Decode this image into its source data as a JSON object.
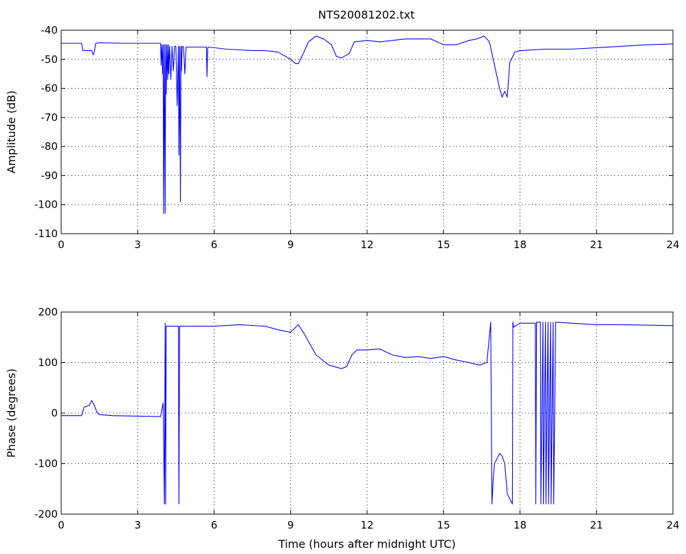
{
  "chart_data": [
    {
      "type": "line",
      "title": "NTS20081202.txt",
      "xlabel": "",
      "ylabel": "Amplitude (dB)",
      "xlim": [
        0,
        24
      ],
      "ylim": [
        -110,
        -40
      ],
      "xticks": [
        "0",
        "3",
        "6",
        "9",
        "12",
        "15",
        "18",
        "21",
        "24"
      ],
      "yticks": [
        "-40",
        "-50",
        "-60",
        "-70",
        "-80",
        "-90",
        "-100",
        "-110"
      ],
      "grid": true,
      "series": [
        {
          "color": "#0000ff",
          "x": [
            0,
            0.8,
            0.85,
            1.2,
            1.25,
            1.3,
            1.35,
            1.5,
            2.5,
            3.9,
            3.92,
            3.95,
            3.98,
            4.0,
            4.02,
            4.05,
            4.08,
            4.1,
            4.12,
            4.15,
            4.18,
            4.2,
            4.22,
            4.25,
            4.3,
            4.35,
            4.4,
            4.45,
            4.5,
            4.55,
            4.6,
            4.62,
            4.65,
            4.68,
            4.7,
            4.72,
            4.75,
            4.8,
            4.85,
            4.9,
            4.95,
            5.0,
            5.5,
            5.7,
            5.72,
            5.75,
            5.8,
            6.5,
            7.5,
            8.0,
            8.5,
            9.0,
            9.2,
            9.3,
            9.5,
            9.7,
            10.0,
            10.3,
            10.6,
            10.8,
            11.0,
            11.3,
            11.5,
            12.0,
            12.5,
            13.0,
            13.5,
            14.0,
            14.5,
            15.0,
            15.5,
            16.0,
            16.3,
            16.6,
            16.8,
            17.0,
            17.2,
            17.3,
            17.4,
            17.5,
            17.6,
            17.8,
            18.0,
            19.0,
            20.0,
            21.0,
            22.0,
            23.0,
            24.0
          ],
          "y": [
            -44.5,
            -44.5,
            -47,
            -47,
            -48.5,
            -47.5,
            -44.5,
            -44.3,
            -44.5,
            -44.5,
            -52,
            -45,
            -55,
            -45,
            -103,
            -45,
            -103,
            -45,
            -62,
            -45,
            -57,
            -45,
            -55,
            -45.5,
            -57,
            -45.5,
            -54,
            -45.5,
            -45.5,
            -66,
            -45.5,
            -83,
            -45.5,
            -99,
            -45.5,
            -54,
            -45.5,
            -45.8,
            -55,
            -45.8,
            -45.8,
            -45.8,
            -45.8,
            -45.8,
            -56,
            -46,
            -45.8,
            -46.5,
            -47,
            -47,
            -47.5,
            -50,
            -51.5,
            -51.5,
            -48,
            -44,
            -42,
            -43,
            -45,
            -49,
            -49.5,
            -48,
            -44,
            -43.5,
            -44,
            -43.5,
            -43,
            -43,
            -43,
            -45,
            -45,
            -43.5,
            -43,
            -42,
            -44,
            -52,
            -60,
            -63,
            -61,
            -63,
            -51,
            -47.5,
            -47,
            -46.5,
            -46.5,
            -46,
            -45.5,
            -45,
            -44.7
          ]
        }
      ]
    },
    {
      "type": "line",
      "title": "",
      "xlabel": "Time (hours after midnight UTC)",
      "ylabel": "Phase (degrees)",
      "xlim": [
        0,
        24
      ],
      "ylim": [
        -200,
        200
      ],
      "xticks": [
        "0",
        "3",
        "6",
        "9",
        "12",
        "15",
        "18",
        "21",
        "24"
      ],
      "yticks": [
        "200",
        "100",
        "0",
        "-100",
        "-200"
      ],
      "grid": true,
      "series": [
        {
          "color": "#0000ff",
          "x": [
            0,
            0.8,
            0.9,
            1.1,
            1.2,
            1.3,
            1.4,
            1.5,
            2.0,
            3.0,
            3.9,
            4.0,
            4.05,
            4.08,
            4.1,
            4.12,
            4.15,
            4.2,
            4.5,
            4.6,
            4.62,
            4.65,
            4.7,
            5.0,
            6.0,
            7.0,
            8.0,
            8.5,
            9.0,
            9.3,
            9.5,
            10.0,
            10.5,
            11.0,
            11.2,
            11.4,
            11.6,
            12.0,
            12.5,
            13.0,
            13.5,
            14.0,
            14.5,
            15.0,
            15.5,
            16.0,
            16.4,
            16.7,
            16.85,
            16.9,
            16.95,
            17.0,
            17.2,
            17.3,
            17.4,
            17.5,
            17.7,
            17.72,
            17.75,
            17.8,
            18.0,
            18.6,
            18.62,
            18.65,
            18.8,
            18.82,
            18.9,
            18.92,
            19.0,
            19.02,
            19.1,
            19.12,
            19.2,
            19.22,
            19.3,
            19.32,
            19.4,
            20.0,
            21.0,
            22.0,
            23.0,
            24.0
          ],
          "y": [
            -5,
            -5,
            12,
            15,
            25,
            15,
            2,
            -3,
            -5,
            -6,
            -7,
            20,
            -180,
            178,
            -180,
            172,
            172,
            172,
            172,
            172,
            -180,
            172,
            172,
            172,
            172,
            175,
            172,
            165,
            160,
            175,
            160,
            115,
            95,
            88,
            92,
            115,
            125,
            125,
            127,
            115,
            110,
            112,
            108,
            112,
            105,
            100,
            95,
            100,
            180,
            -180,
            -130,
            -100,
            -80,
            -85,
            -100,
            -160,
            -180,
            180,
            170,
            172,
            178,
            178,
            -180,
            180,
            180,
            -180,
            180,
            -180,
            180,
            -180,
            180,
            -180,
            180,
            -180,
            180,
            -180,
            180,
            178,
            175,
            175,
            174,
            173
          ]
        }
      ]
    }
  ]
}
